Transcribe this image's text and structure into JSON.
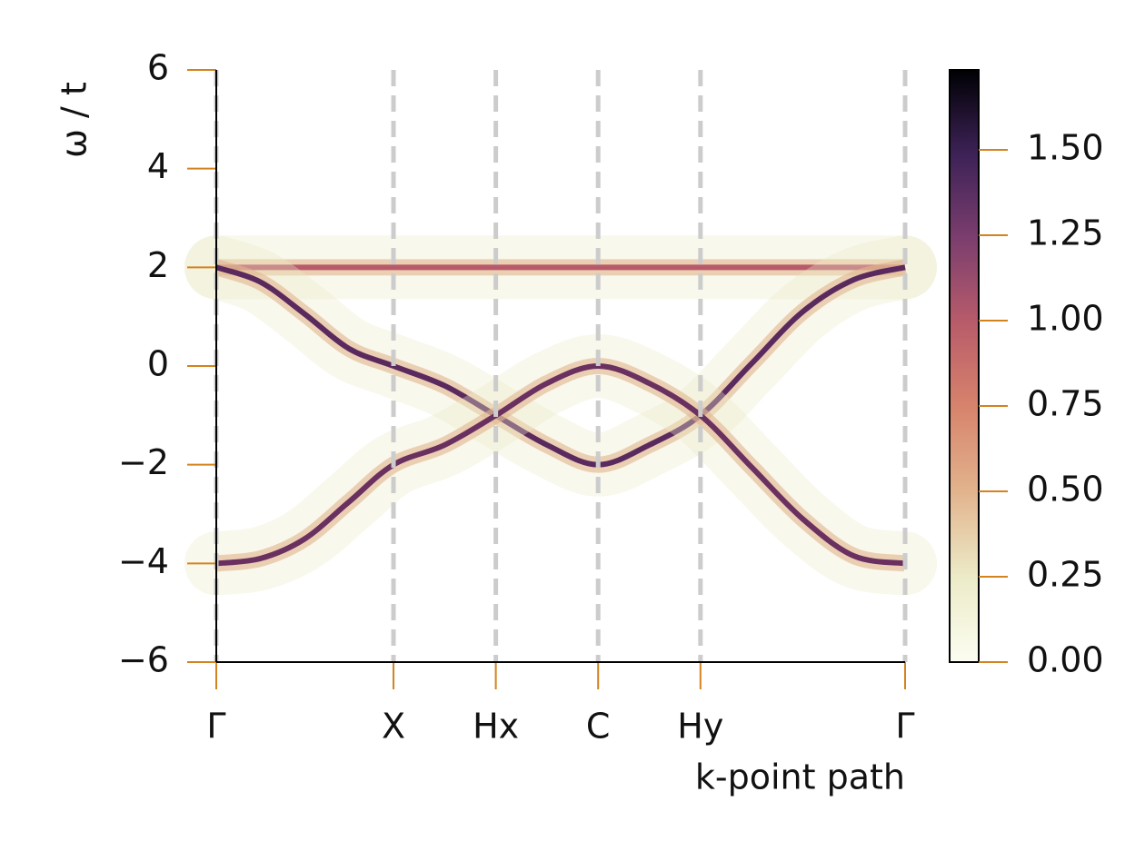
{
  "chart_data": {
    "type": "band",
    "xlabel": "k-point path",
    "ylabel": "ω / t",
    "x": [
      0,
      0.433,
      0.866,
      1.299,
      1.732,
      2.232,
      2.732,
      3.232,
      3.732,
      4.232,
      4.732,
      5.232,
      5.732,
      6.232,
      6.732
    ],
    "series": [
      {
        "color": "#b85a6a",
        "values": [
          2,
          2,
          2,
          2,
          2,
          2,
          2,
          2,
          2,
          2,
          2,
          2,
          2,
          2,
          2
        ]
      },
      {
        "color": "#5a2a5e",
        "values": [
          2,
          1.7,
          1.05,
          0.35,
          0,
          -0.4,
          -1,
          -1.6,
          -2,
          -1.6,
          -1,
          0.05,
          1.1,
          1.75,
          2
        ]
      },
      {
        "color": "#6a3060",
        "values": [
          -4,
          -3.9,
          -3.5,
          -2.75,
          -2,
          -1.6,
          -1,
          -0.35,
          0,
          -0.35,
          -1,
          -2.05,
          -3.1,
          -3.85,
          -4
        ]
      }
    ],
    "xlim": [
      0,
      6.732
    ],
    "xticks": [
      {
        "value": 0,
        "label": "Γ"
      },
      {
        "value": 1.732,
        "label": "X"
      },
      {
        "value": 2.732,
        "label": "Hx"
      },
      {
        "value": 3.732,
        "label": "C"
      },
      {
        "value": 4.732,
        "label": "Hy"
      },
      {
        "value": 6.732,
        "label": "Γ"
      }
    ],
    "ylim": [
      -6,
      6
    ],
    "yticks": [
      {
        "value": -6,
        "label": "−6"
      },
      {
        "value": -4,
        "label": "−4"
      },
      {
        "value": -2,
        "label": "−2"
      },
      0,
      2,
      4,
      6
    ],
    "clim": [
      0,
      1.734
    ],
    "cticks": [
      {
        "value": 0,
        "label": "0.00"
      },
      {
        "value": 0.25,
        "label": "0.25"
      },
      {
        "value": 0.5,
        "label": "0.50"
      },
      {
        "value": 0.75,
        "label": "0.75"
      },
      {
        "value": 1,
        "label": "1.00"
      },
      {
        "value": 1.25,
        "label": "1.25"
      },
      {
        "value": 1.5,
        "label": "1.50"
      }
    ],
    "colorbar_colors": [
      "#fcfdf1",
      "#ecebc8",
      "#e2b48e",
      "#d7846c",
      "#b95c6a",
      "#7c3e6e",
      "#3d2257",
      "#000004"
    ],
    "grid_color": "#cccccc",
    "tick_color": "#d4821e"
  }
}
